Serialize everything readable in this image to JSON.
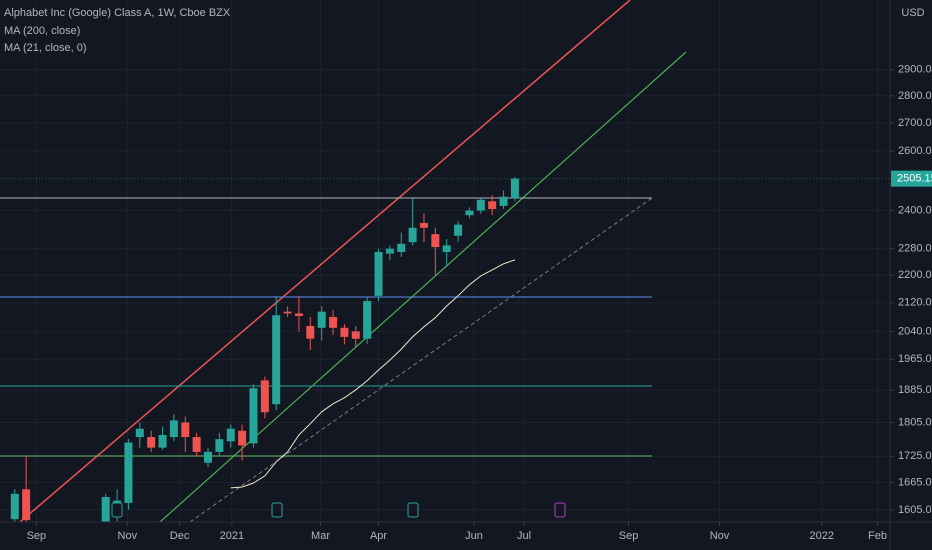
{
  "chart_data": {
    "type": "candlestick",
    "title": "Alphabet Inc (Google) Class A, 1W, Cboe BZX",
    "legend_items": [
      "MA (200, close)",
      "MA (21, close, 0)"
    ],
    "currency": "USD",
    "up_color": "#26a69a",
    "down_color": "#ef5350",
    "ma_color": "#f3e5c8",
    "log_scale": true,
    "grid": true,
    "x": [
      0,
      1,
      8,
      9,
      10,
      11,
      12,
      13,
      14,
      15,
      16,
      17,
      18,
      19,
      20,
      21,
      22,
      23,
      24,
      25,
      26,
      27,
      28,
      29,
      30,
      31,
      32,
      33,
      34,
      35,
      36,
      37,
      38,
      39,
      40,
      41,
      42,
      43,
      44
    ],
    "open": [
      1585,
      1650,
      1580,
      1590,
      1620,
      1770,
      1770,
      1745,
      1770,
      1805,
      1770,
      1710,
      1735,
      1760,
      1785,
      1755,
      1910,
      1850,
      2095,
      2090,
      2055,
      2050,
      2080,
      2050,
      2040,
      2020,
      2140,
      2265,
      2270,
      2300,
      2360,
      2325,
      2270,
      2320,
      2385,
      2400,
      2430,
      2415,
      2440
    ],
    "high": [
      1650,
      1725,
      1640,
      1650,
      1765,
      1805,
      1785,
      1795,
      1825,
      1820,
      1780,
      1745,
      1780,
      1800,
      1800,
      1900,
      1920,
      2140,
      2110,
      2140,
      2080,
      2110,
      2100,
      2060,
      2055,
      2135,
      2280,
      2290,
      2330,
      2440,
      2390,
      2345,
      2310,
      2365,
      2410,
      2440,
      2450,
      2465,
      2510
    ],
    "low": [
      1560,
      1550,
      1560,
      1570,
      1605,
      1745,
      1735,
      1740,
      1760,
      1735,
      1725,
      1700,
      1725,
      1745,
      1715,
      1745,
      1815,
      1835,
      2080,
      2040,
      1990,
      2015,
      2030,
      2005,
      2000,
      2005,
      2125,
      2245,
      2255,
      2290,
      2300,
      2200,
      2225,
      2300,
      2375,
      2390,
      2385,
      2405,
      2430
    ],
    "close": [
      1640,
      1583,
      1633,
      1625,
      1757,
      1790,
      1745,
      1775,
      1810,
      1770,
      1735,
      1735,
      1765,
      1790,
      1750,
      1890,
      1830,
      2085,
      2090,
      2083,
      2020,
      2095,
      2050,
      2025,
      2020,
      2125,
      2270,
      2280,
      2295,
      2345,
      2345,
      2285,
      2290,
      2355,
      2400,
      2435,
      2405,
      2445,
      2505.15
    ],
    "ma_values": [
      null,
      null,
      null,
      null,
      null,
      null,
      null,
      null,
      null,
      null,
      null,
      null,
      null,
      1653,
      1655,
      1664,
      1680,
      1712,
      1735,
      1775,
      1802,
      1831,
      1851,
      1866,
      1886,
      1909,
      1937,
      1963,
      1992,
      2025,
      2053,
      2078,
      2111,
      2140,
      2172,
      2198,
      2216,
      2234,
      2246
    ],
    "xlim": [
      -1.3,
      77.0
    ],
    "xticks": [
      {
        "value": 1.9,
        "label": "Sep"
      },
      {
        "value": 9.9,
        "label": "Nov"
      },
      {
        "value": 14.5,
        "label": "Dec"
      },
      {
        "value": 19.1,
        "label": "2021"
      },
      {
        "value": 26.9,
        "label": "Mar"
      },
      {
        "value": 32.0,
        "label": "Apr"
      },
      {
        "value": 40.4,
        "label": "Jun"
      },
      {
        "value": 44.8,
        "label": "Jul"
      },
      {
        "value": 54.0,
        "label": "Sep"
      },
      {
        "value": 62.0,
        "label": "Nov"
      },
      {
        "value": 71.0,
        "label": "2022"
      },
      {
        "value": 75.9,
        "label": "Feb"
      }
    ],
    "ylim": [
      1579,
      3185
    ],
    "yticks": [
      {
        "value": 1605,
        "label": "1605.00"
      },
      {
        "value": 1665,
        "label": "1665.00"
      },
      {
        "value": 1725,
        "label": "1725.00"
      },
      {
        "value": 1805,
        "label": "1805.00"
      },
      {
        "value": 1885,
        "label": "1885.00"
      },
      {
        "value": 1965,
        "label": "1965.00"
      },
      {
        "value": 2040,
        "label": "2040.00"
      },
      {
        "value": 2120,
        "label": "2120.00"
      },
      {
        "value": 2200,
        "label": "2200.00"
      },
      {
        "value": 2280,
        "label": "2280.00"
      },
      {
        "value": 2400,
        "label": "2400.00"
      },
      {
        "value": 2600,
        "label": "2600.00"
      },
      {
        "value": 2700,
        "label": "2700.00"
      },
      {
        "value": 2800,
        "label": "2800.00"
      },
      {
        "value": 2900,
        "label": "2900.00"
      }
    ]
  }
}
